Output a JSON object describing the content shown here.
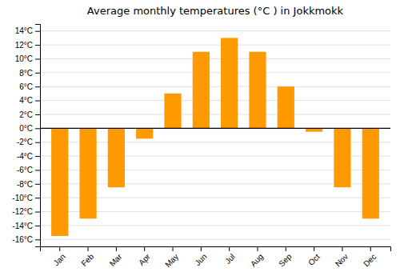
{
  "chart_data": {
    "type": "bar",
    "title": "Average monthly temperatures (°C ) in Jokkmokk",
    "categories": [
      "Jan",
      "Feb",
      "Mar",
      "Apr",
      "May",
      "Jun",
      "Jul",
      "Aug",
      "Sep",
      "Oct",
      "Nov",
      "Dec"
    ],
    "values": [
      -15.5,
      -13.0,
      -8.5,
      -1.5,
      5.0,
      11.0,
      13.0,
      11.0,
      6.0,
      -0.5,
      -8.5,
      -13.0
    ],
    "color": "#FF9900",
    "ylim": [
      -17,
      15
    ],
    "yticks": [
      {
        "value": -16,
        "label": "-16°C"
      },
      {
        "value": -14,
        "label": "-14°C"
      },
      {
        "value": -12,
        "label": "-12°C"
      },
      {
        "value": -10,
        "label": "-10°C"
      },
      {
        "value": -8,
        "label": "-8°C"
      },
      {
        "value": -6,
        "label": "-6°C"
      },
      {
        "value": -4,
        "label": "-4°C"
      },
      {
        "value": -2,
        "label": "-2°C"
      },
      {
        "value": 0,
        "label": "0°C"
      },
      {
        "value": 2,
        "label": "2°C"
      },
      {
        "value": 4,
        "label": "4°C"
      },
      {
        "value": 6,
        "label": "6°C"
      },
      {
        "value": 8,
        "label": "8°C"
      },
      {
        "value": 10,
        "label": "10°C"
      },
      {
        "value": 12,
        "label": "12°C"
      },
      {
        "value": 14,
        "label": "14°C"
      }
    ],
    "grid": true
  }
}
